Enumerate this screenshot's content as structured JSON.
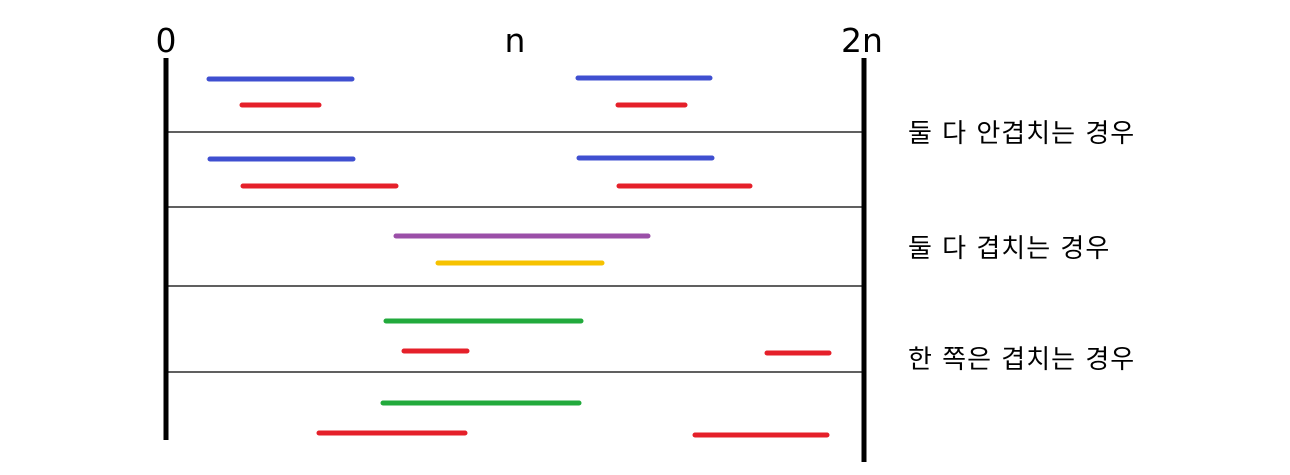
{
  "axis": {
    "left_label": "0",
    "mid_label": "n",
    "right_label": "2n"
  },
  "cases": [
    {
      "label": "둘 다 안겹치는 경우"
    },
    {
      "label": "둘 다 겹치는 경우"
    },
    {
      "label": "한 쪽은 겹치는 경우"
    }
  ],
  "colors": {
    "blue": "#3f4fd0",
    "red": "#e5202a",
    "purple": "#9b4fa8",
    "yellow": "#f6c200",
    "green": "#22aa3c",
    "black": "#000000"
  }
}
